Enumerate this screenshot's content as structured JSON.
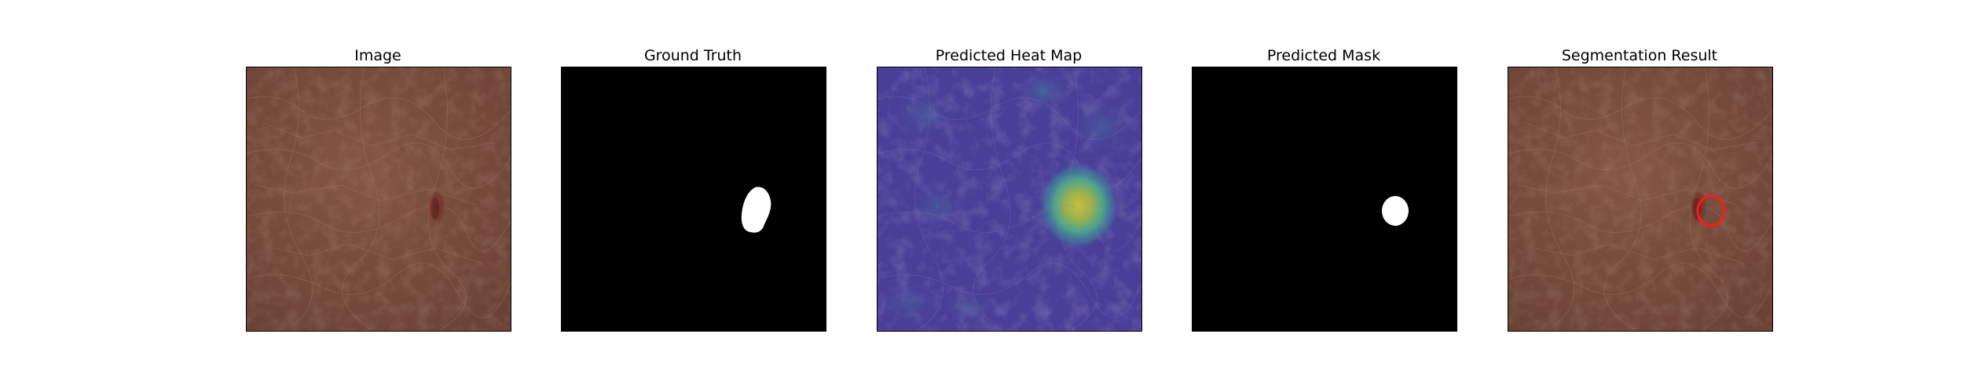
{
  "figure": {
    "panels": [
      {
        "id": "image",
        "title": "Image"
      },
      {
        "id": "ground-truth",
        "title": "Ground Truth"
      },
      {
        "id": "predicted-heat-map",
        "title": "Predicted Heat Map"
      },
      {
        "id": "predicted-mask",
        "title": "Predicted Mask"
      },
      {
        "id": "segmentation-result",
        "title": "Segmentation Result"
      }
    ]
  },
  "colors": {
    "leather": "#7a4f3f",
    "leather_dark": "#5e3a2e",
    "defect": "#6b2a24",
    "mask_bg": "#000000",
    "mask_fg": "#ffffff",
    "heat_base": "#4a3c96",
    "heat_hot": "#d6c83a",
    "overlay_contour": "#ff1a1a"
  }
}
